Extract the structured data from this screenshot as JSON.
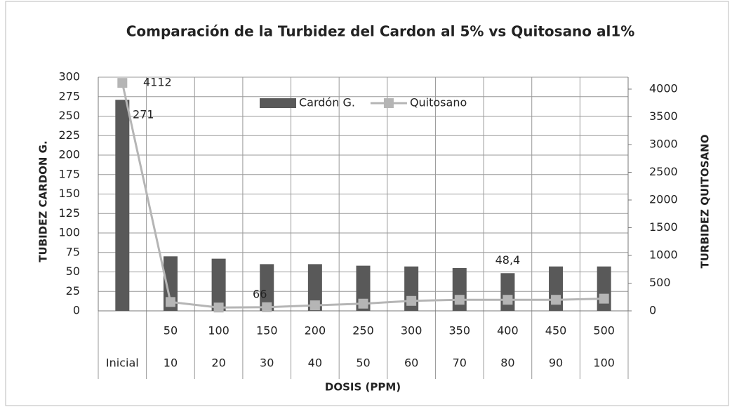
{
  "chart_data": {
    "type": "bar_line",
    "title": "Comparación de la Turbidez del Cardon al 5% vs Quitosano al1%",
    "x_label": "DOSIS (PPM)",
    "y_label": "TUBIDEZ CARDON G.",
    "y2_label": "TURBIDEZ QUITOSANO",
    "categories": [
      null,
      "50",
      "100",
      "150",
      "200",
      "250",
      "300",
      "350",
      "400",
      "450",
      "500"
    ],
    "category_groups": [
      "Inicial",
      "10",
      "20",
      "30",
      "40",
      "50",
      "60",
      "70",
      "80",
      "90",
      "100"
    ],
    "series": [
      {
        "name": "Cardón G.",
        "type": "bar",
        "color": "#595959",
        "values": [
          271,
          70,
          67,
          60,
          60,
          58,
          57,
          55,
          48.4,
          57,
          57
        ],
        "value_labels": [
          "271",
          null,
          null,
          null,
          null,
          null,
          null,
          null,
          "48,4",
          null,
          null
        ]
      },
      {
        "name": "Quitosano",
        "type": "line",
        "axis": "y2",
        "color": "#b5b5b5",
        "values": [
          4112,
          160,
          60,
          66,
          100,
          130,
          180,
          200,
          200,
          200,
          220
        ],
        "value_labels": [
          "4112",
          null,
          null,
          "66",
          null,
          null,
          null,
          null,
          null,
          null,
          null
        ]
      }
    ],
    "ylim": [
      0,
      300
    ],
    "yticks": [
      0,
      25,
      50,
      75,
      100,
      125,
      150,
      175,
      200,
      225,
      250,
      275,
      300
    ],
    "y2lim": [
      0,
      4215
    ],
    "y2ticks": [
      0,
      500,
      1000,
      1500,
      2000,
      2500,
      3000,
      3500,
      4000
    ],
    "grid": true,
    "legend": "top"
  }
}
